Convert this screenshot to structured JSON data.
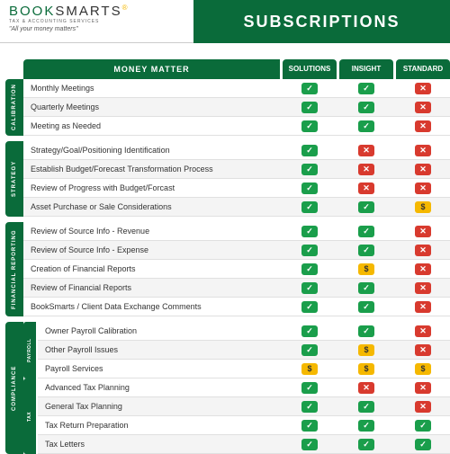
{
  "brand": {
    "name_a": "BOOK",
    "name_b": "SMARTS",
    "subtitle": "TAX & ACCOUNTING SERVICES",
    "tagline": "\"All your money matters\""
  },
  "page_title": "SUBSCRIPTIONS",
  "columns": {
    "feature": "MONEY MATTER",
    "plan1": "SOLUTIONS",
    "plan2": "INSIGHT",
    "plan3": "STANDARD"
  },
  "colors": {
    "brand_green": "#0a6b3a",
    "check_green": "#1a9e4b",
    "cross_red": "#d83a2e",
    "dollar_yellow": "#f5b800",
    "row_alt": "#f4f4f4",
    "border": "#e0e0e0"
  },
  "glyphs": {
    "check": "✓",
    "cross": "✕",
    "dollar": "$"
  },
  "sections": [
    {
      "label": "CALIBRATION",
      "rows": [
        {
          "label": "Monthly Meetings",
          "p": [
            "check",
            "check",
            "cross"
          ]
        },
        {
          "label": "Quarterly Meetings",
          "p": [
            "check",
            "check",
            "cross"
          ]
        },
        {
          "label": "Meeting as Needed",
          "p": [
            "check",
            "check",
            "cross"
          ]
        }
      ]
    },
    {
      "label": "STRATEGY",
      "rows": [
        {
          "label": "Strategy/Goal/Positioning Identification",
          "p": [
            "check",
            "cross",
            "cross"
          ]
        },
        {
          "label": "Establish Budget/Forecast Transformation Process",
          "p": [
            "check",
            "cross",
            "cross"
          ]
        },
        {
          "label": "Review of Progress with Budget/Forcast",
          "p": [
            "check",
            "cross",
            "cross"
          ]
        },
        {
          "label": "Asset Purchase or Sale Considerations",
          "p": [
            "check",
            "check",
            "dollar"
          ]
        }
      ]
    },
    {
      "label": "FINANCIAL REPORTING",
      "rows": [
        {
          "label": "Review of Source Info - Revenue",
          "p": [
            "check",
            "check",
            "cross"
          ]
        },
        {
          "label": "Review of Source Info - Expense",
          "p": [
            "check",
            "check",
            "cross"
          ]
        },
        {
          "label": "Creation of Financial Reports",
          "p": [
            "check",
            "dollar",
            "cross"
          ]
        },
        {
          "label": "Review of Financial Reports",
          "p": [
            "check",
            "check",
            "cross"
          ]
        },
        {
          "label": "BookSmarts / Client Data Exchange Comments",
          "p": [
            "check",
            "check",
            "cross"
          ]
        }
      ]
    },
    {
      "label": "COMPLIANCE",
      "nested": [
        {
          "label": "PAYROLL",
          "rows": [
            {
              "label": "Owner Payroll Calibration",
              "p": [
                "check",
                "check",
                "cross"
              ]
            },
            {
              "label": "Other Payroll Issues",
              "p": [
                "check",
                "dollar",
                "cross"
              ]
            },
            {
              "label": "Payroll Services",
              "p": [
                "dollar",
                "dollar",
                "dollar"
              ]
            }
          ]
        },
        {
          "label": "TAX",
          "rows": [
            {
              "label": "Advanced Tax Planning",
              "p": [
                "check",
                "cross",
                "cross"
              ]
            },
            {
              "label": "General Tax Planning",
              "p": [
                "check",
                "check",
                "cross"
              ]
            },
            {
              "label": "Tax Return Preparation",
              "p": [
                "check",
                "check",
                "check"
              ]
            },
            {
              "label": "Tax Letters",
              "p": [
                "check",
                "check",
                "check"
              ]
            }
          ]
        }
      ]
    }
  ]
}
